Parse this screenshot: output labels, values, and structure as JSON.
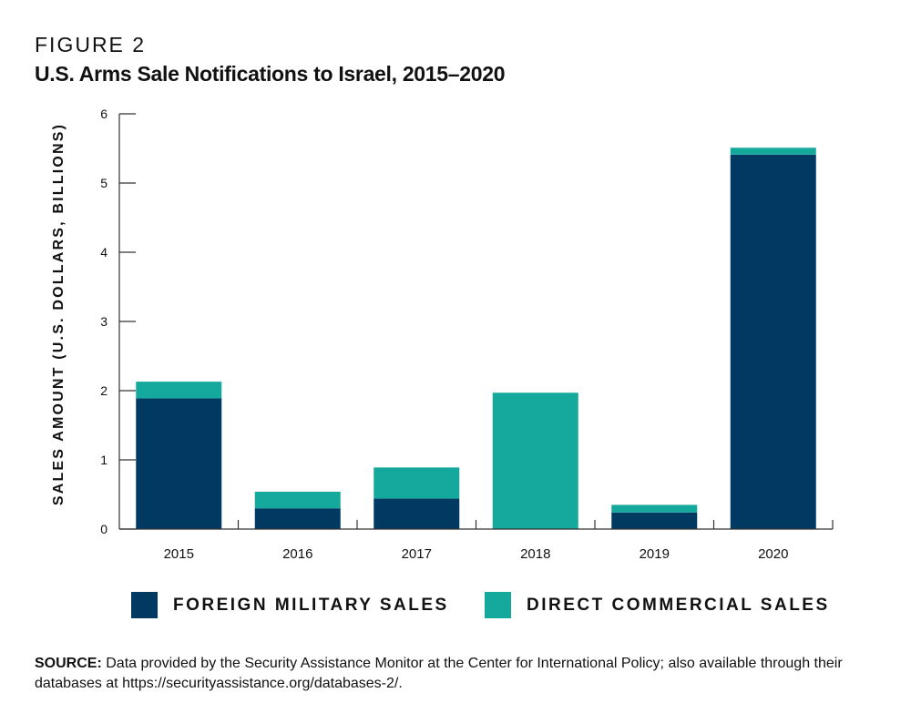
{
  "figure_label": "FIGURE 2",
  "title": "U.S. Arms Sale Notifications to Israel, 2015–2020",
  "source_label": "SOURCE:",
  "source_text": "Data provided by the Security Assistance Monitor at the Center for International Policy; also available through their databases at https://securityassistance.org/databases-2/.",
  "colors": {
    "foreign_military_sales": "#003A63",
    "direct_commercial_sales": "#15A89C"
  },
  "chart_data": {
    "type": "bar",
    "stacked": true,
    "title": "U.S. Arms Sale Notifications to Israel, 2015–2020",
    "xlabel": "",
    "ylabel": "SALES AMOUNT (U.S. DOLLARS, BILLIONS)",
    "ylim": [
      0,
      6
    ],
    "yticks": [
      "0",
      "1",
      "2",
      "3",
      "4",
      "5",
      "6"
    ],
    "categories": [
      "2015",
      "2016",
      "2017",
      "2018",
      "2019",
      "2020"
    ],
    "series": [
      {
        "name": "FOREIGN MILITARY SALES",
        "color": "#003A63",
        "values": [
          1.89,
          0.3,
          0.44,
          0,
          0.24,
          5.41
        ]
      },
      {
        "name": "DIRECT COMMERCIAL SALES",
        "color": "#15A89C",
        "values": [
          0.24,
          0.24,
          0.45,
          1.97,
          0.11,
          0.1
        ]
      }
    ],
    "grid": false,
    "legend": "bottom"
  }
}
